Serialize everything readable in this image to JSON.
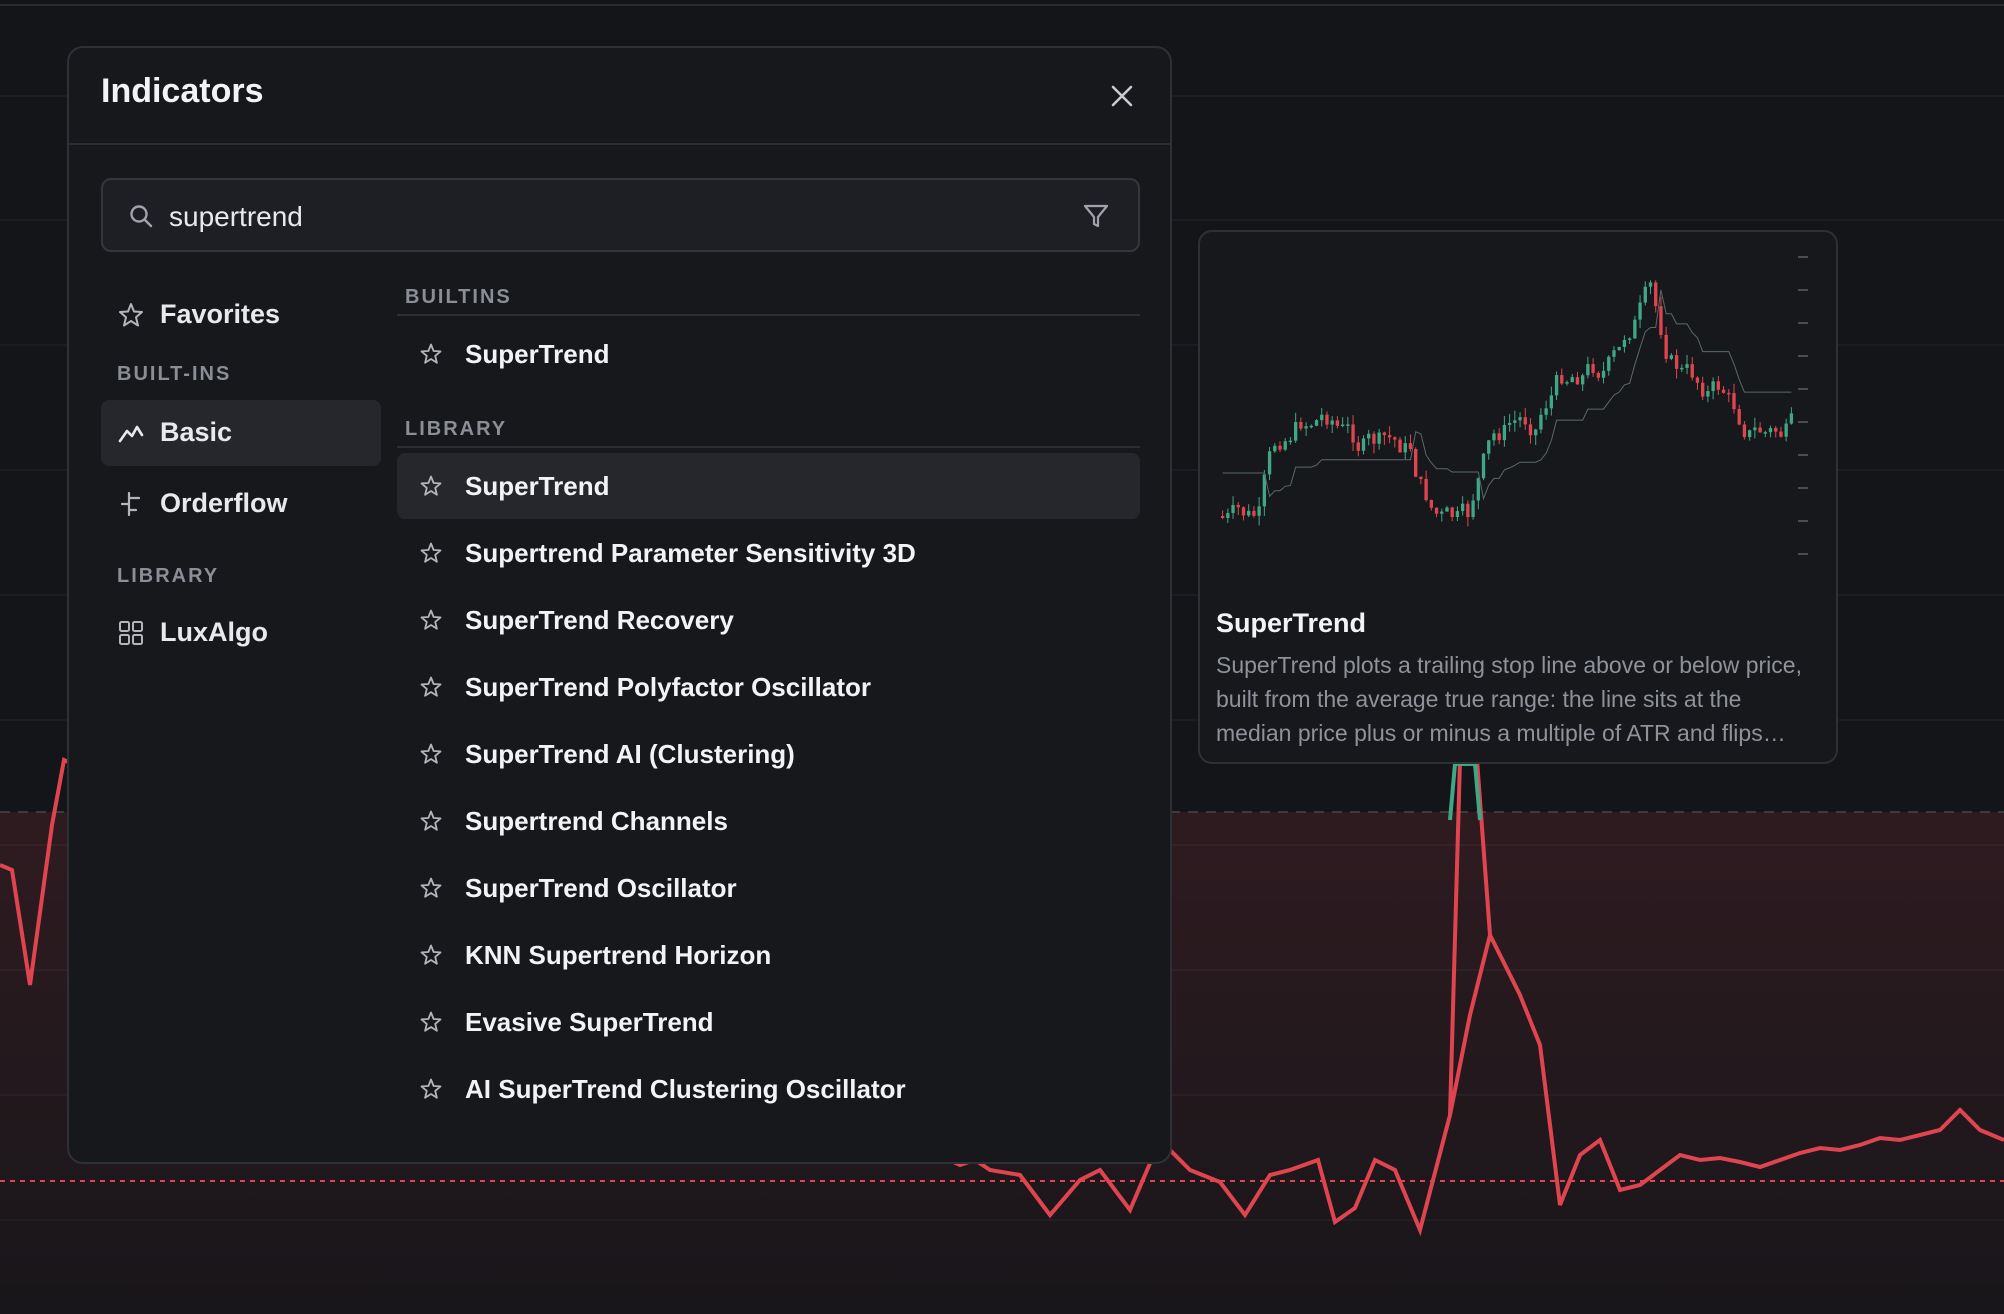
{
  "modal": {
    "title": "Indicators",
    "search": {
      "value": "supertrend",
      "placeholder": ""
    }
  },
  "sidebar": {
    "favorites_label": "Favorites",
    "builtins_header": "BUILT-INS",
    "basic_label": "Basic",
    "orderflow_label": "Orderflow",
    "library_header": "LIBRARY",
    "luxalgo_label": "LuxAlgo"
  },
  "results": {
    "builtins_header": "BUILTINS",
    "builtins": [
      "SuperTrend"
    ],
    "library_header": "LIBRARY",
    "library": [
      "SuperTrend",
      "Supertrend Parameter Sensitivity 3D",
      "SuperTrend Recovery",
      "SuperTrend Polyfactor Oscillator",
      "SuperTrend AI (Clustering)",
      "Supertrend Channels",
      "SuperTrend Oscillator",
      "KNN Supertrend Horizon",
      "Evasive SuperTrend",
      "AI SuperTrend Clustering Oscillator"
    ]
  },
  "preview": {
    "title": "SuperTrend",
    "description": "SuperTrend plots a trailing stop line above or below price, built from the average true range: the line sits at the median price plus or minus a multiple of ATR and flips sides when price closes through it."
  },
  "colors": {
    "up": "#3fa784",
    "down": "#e0454f",
    "background": "#141519",
    "panel": "#17181c",
    "active_row": "#26272c"
  }
}
